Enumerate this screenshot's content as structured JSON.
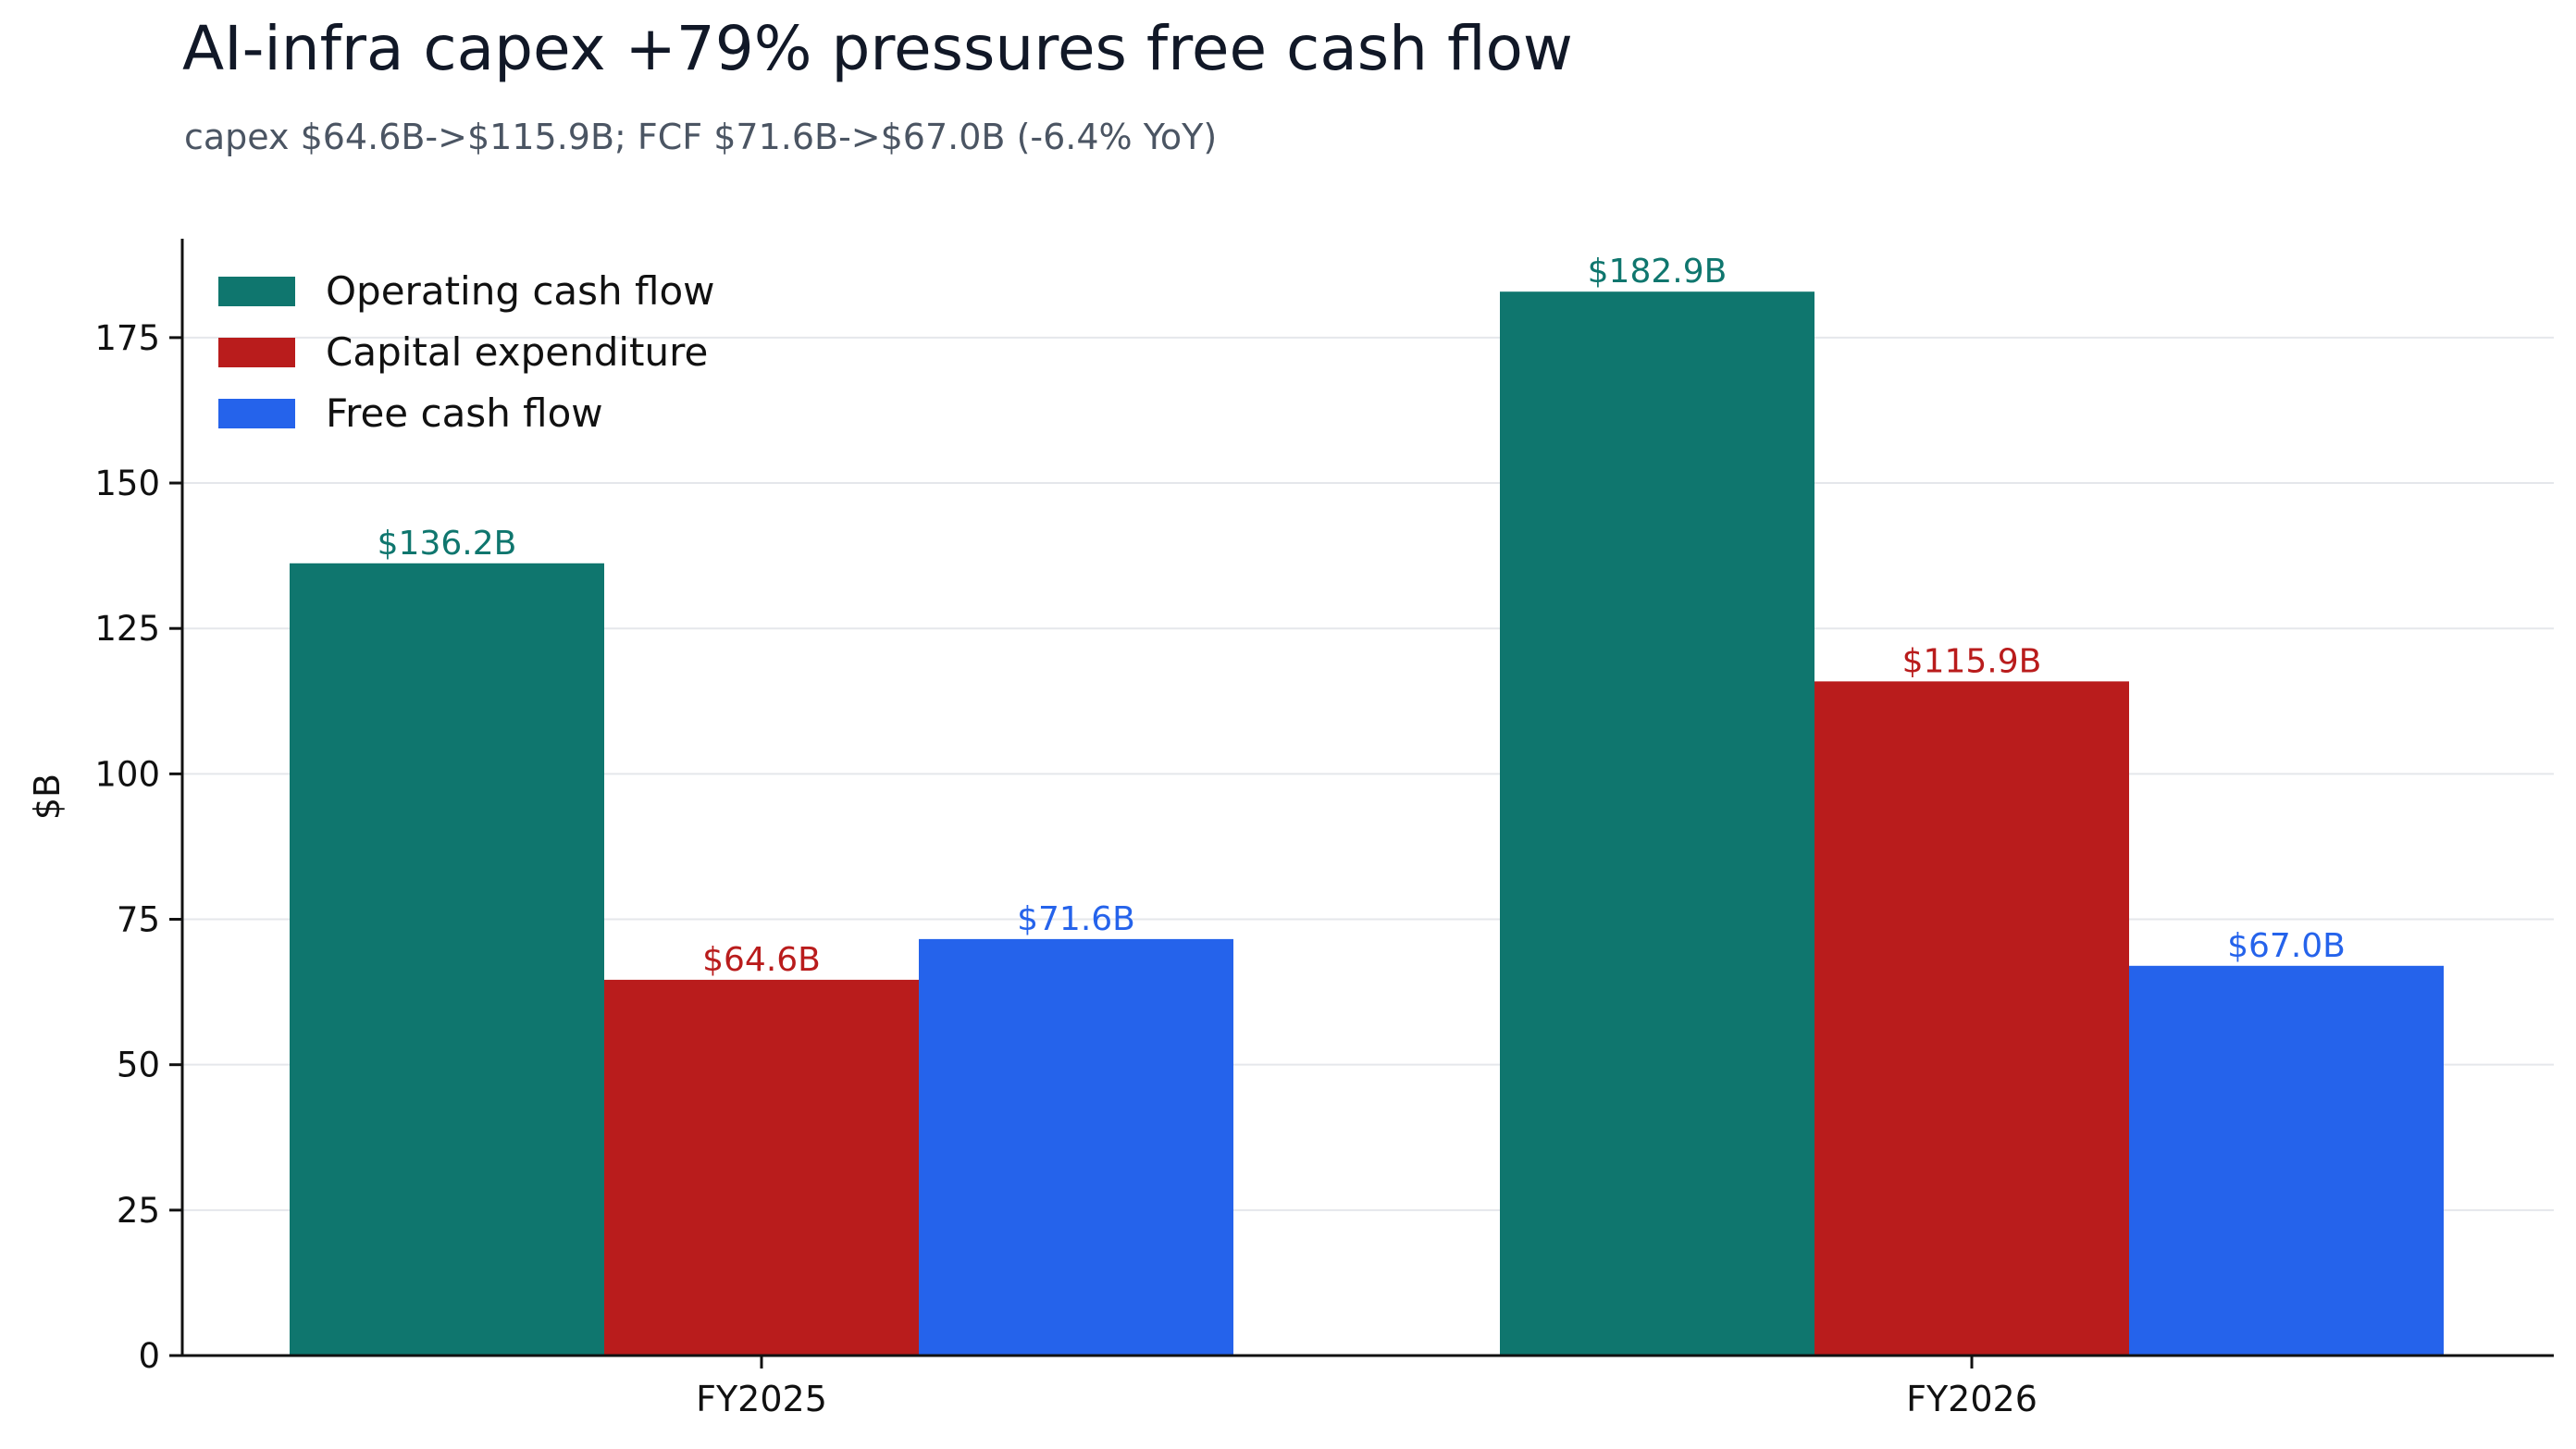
{
  "chart_data": {
    "type": "bar",
    "title": "AI-infra capex +79% pressures free cash flow",
    "subtitle": "capex $64.6B->$115.9B; FCF $71.6B->$67.0B (-6.4% YoY)",
    "xlabel": "",
    "ylabel": "$B",
    "categories": [
      "FY2025",
      "FY2026"
    ],
    "ylim": [
      0,
      192
    ],
    "yticks": [
      0,
      25,
      50,
      75,
      100,
      125,
      150,
      175
    ],
    "grid": "horizontal",
    "legend_position": "top-left",
    "series": [
      {
        "name": "Operating cash flow",
        "color": "#0f766e",
        "values": [
          136.2,
          182.9
        ],
        "labels": [
          "$136.2B",
          "$182.9B"
        ]
      },
      {
        "name": "Capital expenditure",
        "color": "#b91c1c",
        "values": [
          64.6,
          115.9
        ],
        "labels": [
          "$64.6B",
          "$115.9B"
        ]
      },
      {
        "name": "Free cash flow",
        "color": "#2563eb",
        "values": [
          71.6,
          67.0
        ],
        "labels": [
          "$71.6B",
          "$67.0B"
        ]
      }
    ]
  }
}
